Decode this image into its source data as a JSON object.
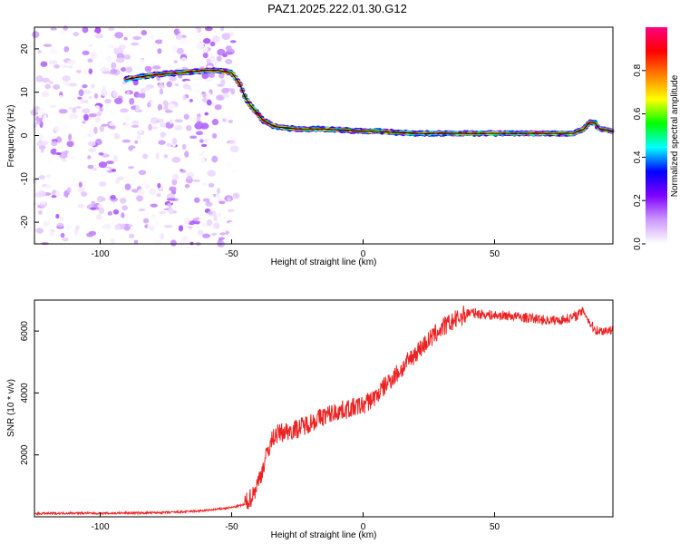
{
  "title": "PAZ1.2025.222.01.30.G12",
  "chart_data": [
    {
      "type": "heatmap",
      "xlabel": "Height of straight line (km)",
      "ylabel": "Frequency (Hz)",
      "xlim": [
        -125,
        95
      ],
      "ylim": [
        -25,
        25
      ],
      "x_ticks": [
        -100,
        -50,
        0,
        50
      ],
      "y_ticks": [
        -20,
        -10,
        0,
        10,
        20
      ],
      "colorbar": {
        "label": "Normalized spectral amplitude",
        "range": [
          0,
          1
        ],
        "ticks": [
          0.0,
          0.2,
          0.4,
          0.6,
          0.8
        ],
        "colormap": [
          "#ffffff",
          "#cc99ff",
          "#8000ff",
          "#0000ff",
          "#00ffff",
          "#00ff00",
          "#ffff00",
          "#ff8000",
          "#ff0000",
          "#ff0080"
        ]
      },
      "ridge_line": {
        "x": [
          -90,
          -85,
          -80,
          -70,
          -60,
          -55,
          -50,
          -47,
          -45,
          -43,
          -40,
          -38,
          -35,
          -33,
          -30,
          -25,
          -20,
          -15,
          -10,
          -5,
          0,
          5,
          10,
          20,
          30,
          40,
          50,
          60,
          70,
          80,
          84,
          86,
          88,
          90,
          95
        ],
        "y": [
          13,
          13.5,
          14,
          14.5,
          15,
          15,
          14.5,
          12,
          9,
          7,
          5,
          3.5,
          2.5,
          2,
          1.8,
          1.5,
          1.5,
          1.5,
          1.3,
          1.2,
          1.0,
          1.0,
          0.8,
          0.5,
          0.5,
          0.5,
          0.5,
          0.5,
          0.5,
          0.5,
          1.5,
          3,
          3,
          1.5,
          1
        ]
      },
      "noise_region_x": [
        -125,
        -48
      ]
    },
    {
      "type": "line",
      "xlabel": "Height of straight line (km)",
      "ylabel": "SNR (10 * v/v)",
      "xlim": [
        -125,
        95
      ],
      "ylim": [
        0,
        7000
      ],
      "x_ticks": [
        -100,
        -50,
        0,
        50
      ],
      "y_ticks": [
        2000,
        4000,
        6000
      ],
      "series": [
        {
          "color": "#ee2222",
          "x": [
            -125,
            -110,
            -100,
            -90,
            -80,
            -70,
            -60,
            -55,
            -50,
            -45,
            -42,
            -40,
            -38,
            -36,
            -34,
            -32,
            -30,
            -25,
            -20,
            -15,
            -10,
            -5,
            0,
            5,
            10,
            15,
            20,
            25,
            30,
            35,
            40,
            45,
            50,
            55,
            60,
            65,
            70,
            75,
            80,
            84,
            86,
            88,
            90,
            95
          ],
          "y": [
            100,
            120,
            110,
            120,
            130,
            150,
            200,
            250,
            300,
            400,
            700,
            1100,
            1600,
            2200,
            2600,
            2700,
            2750,
            2850,
            3050,
            3250,
            3400,
            3500,
            3600,
            3900,
            4400,
            4800,
            5300,
            5700,
            6100,
            6350,
            6600,
            6550,
            6500,
            6500,
            6450,
            6400,
            6350,
            6350,
            6450,
            6650,
            6300,
            6050,
            6000,
            6050
          ]
        }
      ]
    }
  ]
}
